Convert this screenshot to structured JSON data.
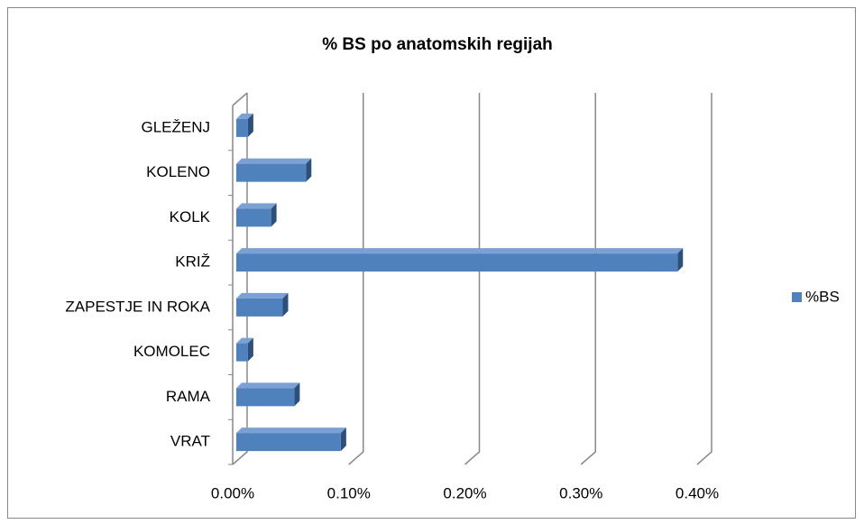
{
  "chart_data": {
    "type": "bar",
    "orientation": "horizontal",
    "title": "% BS po anatomskih regijah",
    "categories": [
      "VRAT",
      "RAMA",
      "KOMOLEC",
      "ZAPESTJE IN ROKA",
      "KRIŽ",
      "KOLK",
      "KOLENO",
      "GLEŽENJ"
    ],
    "series": [
      {
        "name": "%BS",
        "color": "#4f81bd",
        "values": [
          0.09,
          0.05,
          0.01,
          0.04,
          0.38,
          0.03,
          0.06,
          0.01
        ]
      }
    ],
    "xlim": [
      0,
      0.4
    ],
    "xticks": [
      {
        "value": 0,
        "label": "0.00%"
      },
      {
        "value": 0.1,
        "label": "0.10%"
      },
      {
        "value": 0.2,
        "label": "0.20%"
      },
      {
        "value": 0.3,
        "label": "0.30%"
      },
      {
        "value": 0.4,
        "label": "0.40%"
      }
    ],
    "grid": true,
    "legend": "right"
  }
}
